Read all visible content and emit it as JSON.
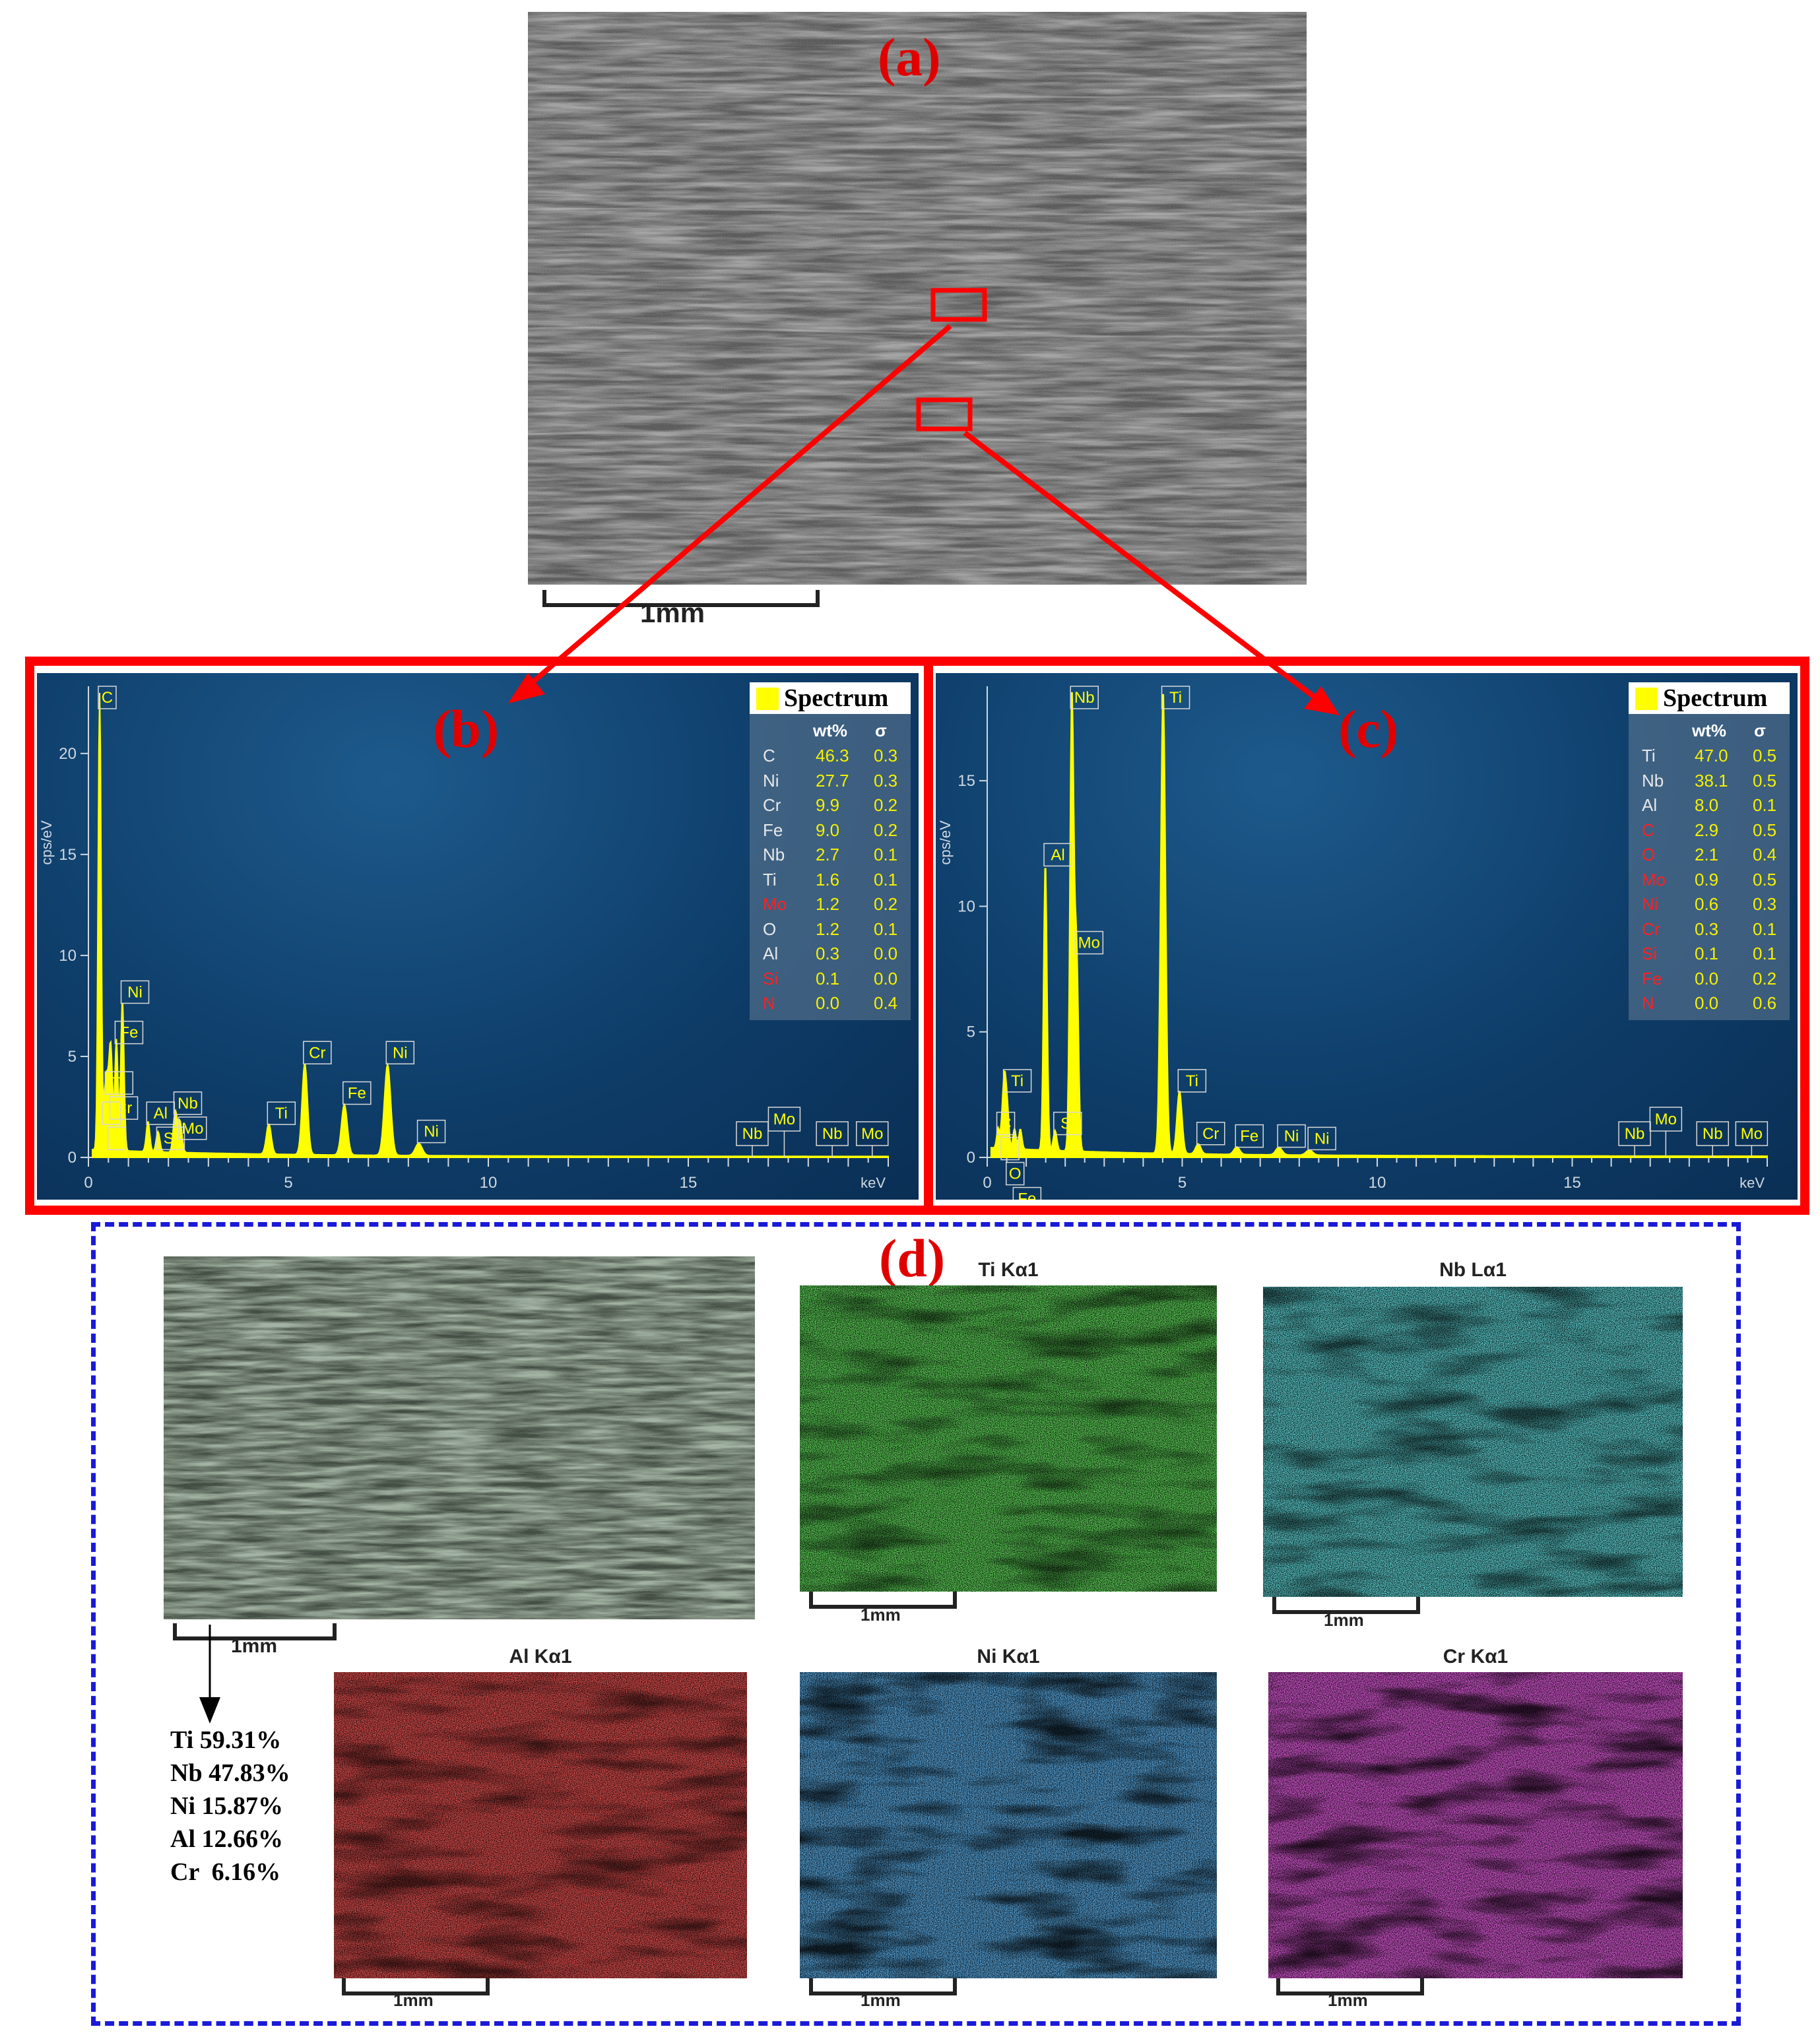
{
  "panels": {
    "a": {
      "label": "(a)",
      "scale": "1mm"
    },
    "b": {
      "label": "(b)",
      "legend_title": "Spectrum",
      "col_wt": "wt%",
      "col_sigma": "σ",
      "rows": [
        {
          "el": "C",
          "wt": "46.3",
          "s": "0.3",
          "color": "#e8e8e8"
        },
        {
          "el": "Ni",
          "wt": "27.7",
          "s": "0.3",
          "color": "#e8e8e8"
        },
        {
          "el": "Cr",
          "wt": "9.9",
          "s": "0.2",
          "color": "#e8e8e8"
        },
        {
          "el": "Fe",
          "wt": "9.0",
          "s": "0.2",
          "color": "#e8e8e8"
        },
        {
          "el": "Nb",
          "wt": "2.7",
          "s": "0.1",
          "color": "#e8e8e8"
        },
        {
          "el": "Ti",
          "wt": "1.6",
          "s": "0.1",
          "color": "#e8e8e8"
        },
        {
          "el": "Mo",
          "wt": "1.2",
          "s": "0.2",
          "color": "#ff2020"
        },
        {
          "el": "O",
          "wt": "1.2",
          "s": "0.1",
          "color": "#e8e8e8"
        },
        {
          "el": "Al",
          "wt": "0.3",
          "s": "0.0",
          "color": "#e8e8e8"
        },
        {
          "el": "Si",
          "wt": "0.1",
          "s": "0.0",
          "color": "#ff2020"
        },
        {
          "el": "N",
          "wt": "0.0",
          "s": "0.4",
          "color": "#ff2020"
        }
      ]
    },
    "c": {
      "label": "(c)",
      "legend_title": "Spectrum",
      "col_wt": "wt%",
      "col_sigma": "σ",
      "rows": [
        {
          "el": "Ti",
          "wt": "47.0",
          "s": "0.5",
          "color": "#e8e8e8"
        },
        {
          "el": "Nb",
          "wt": "38.1",
          "s": "0.5",
          "color": "#e8e8e8"
        },
        {
          "el": "Al",
          "wt": "8.0",
          "s": "0.1",
          "color": "#e8e8e8"
        },
        {
          "el": "C",
          "wt": "2.9",
          "s": "0.5",
          "color": "#ff2020"
        },
        {
          "el": "O",
          "wt": "2.1",
          "s": "0.4",
          "color": "#ff2020"
        },
        {
          "el": "Mo",
          "wt": "0.9",
          "s": "0.5",
          "color": "#ff2020"
        },
        {
          "el": "Ni",
          "wt": "0.6",
          "s": "0.3",
          "color": "#ff2020"
        },
        {
          "el": "Cr",
          "wt": "0.3",
          "s": "0.1",
          "color": "#ff2020"
        },
        {
          "el": "Si",
          "wt": "0.1",
          "s": "0.1",
          "color": "#ff2020"
        },
        {
          "el": "Fe",
          "wt": "0.0",
          "s": "0.2",
          "color": "#ff2020"
        },
        {
          "el": "N",
          "wt": "0.0",
          "s": "0.6",
          "color": "#ff2020"
        }
      ]
    },
    "d": {
      "label": "(d)",
      "scale": "1mm",
      "maps": [
        {
          "title": "Ti Kα1",
          "color": "#22c81e"
        },
        {
          "title": "Nb Lα1",
          "color": "#22c4c8"
        },
        {
          "title": "Al Kα1",
          "color": "#f01818"
        },
        {
          "title": "Ni Kα1",
          "color": "#1e78e6"
        },
        {
          "title": "Cr Kα1",
          "color": "#d81ed0"
        }
      ],
      "composition": [
        "Ti 59.31%",
        "Nb 47.83%",
        "Ni 15.87%",
        "Al 12.66%",
        "Cr  6.16%"
      ]
    }
  },
  "chart_data": [
    {
      "type": "line",
      "panel": "b",
      "xlabel": "keV",
      "ylabel": "cps/eV",
      "xlim": [
        0,
        20
      ],
      "ylim": [
        0,
        23
      ],
      "xticks": [
        0,
        5,
        10,
        15
      ],
      "yticks": [
        0,
        5,
        10,
        15,
        20
      ],
      "peaks": [
        {
          "x": 0.28,
          "y": 23,
          "label": "C"
        },
        {
          "x": 0.39,
          "y": 1.5,
          "label": "N"
        },
        {
          "x": 0.45,
          "y": 3.0,
          "label": "Ti"
        },
        {
          "x": 0.52,
          "y": 2.5,
          "label": "O"
        },
        {
          "x": 0.57,
          "y": 4.0,
          "label": "Cr"
        },
        {
          "x": 0.7,
          "y": 5.5,
          "label": "Fe"
        },
        {
          "x": 0.85,
          "y": 7.5,
          "label": "Ni"
        },
        {
          "x": 1.49,
          "y": 1.5,
          "label": "Al"
        },
        {
          "x": 1.74,
          "y": 1.0,
          "label": "Si"
        },
        {
          "x": 2.17,
          "y": 2.0,
          "label": "Nb"
        },
        {
          "x": 2.29,
          "y": 1.5,
          "label": "Mo"
        },
        {
          "x": 4.51,
          "y": 1.5,
          "label": "Ti"
        },
        {
          "x": 5.41,
          "y": 4.5,
          "label": "Cr"
        },
        {
          "x": 6.4,
          "y": 2.5,
          "label": "Fe"
        },
        {
          "x": 7.48,
          "y": 4.5,
          "label": "Ni"
        },
        {
          "x": 8.26,
          "y": 0.6,
          "label": "Ni"
        }
      ],
      "marker_labels": [
        {
          "x": 16.6,
          "label": "Nb"
        },
        {
          "x": 17.4,
          "label": "Mo"
        },
        {
          "x": 18.6,
          "label": "Nb"
        },
        {
          "x": 19.6,
          "label": "Mo"
        }
      ]
    },
    {
      "type": "line",
      "panel": "c",
      "xlabel": "keV",
      "ylabel": "cps/eV",
      "xlim": [
        0,
        20
      ],
      "ylim": [
        0,
        18.5
      ],
      "xticks": [
        0,
        5,
        10,
        15
      ],
      "yticks": [
        0,
        5,
        10,
        15
      ],
      "peaks": [
        {
          "x": 0.28,
          "y": 0.8,
          "label": "C"
        },
        {
          "x": 0.39,
          "y": 1.2,
          "label": "N"
        },
        {
          "x": 0.45,
          "y": 2.5,
          "label": "Ti"
        },
        {
          "x": 0.52,
          "y": 1.5,
          "label": "O"
        },
        {
          "x": 0.7,
          "y": 0.8,
          "label": "Fe"
        },
        {
          "x": 0.85,
          "y": 0.8,
          "label": "Ni"
        },
        {
          "x": 1.49,
          "y": 11.5,
          "label": "Al"
        },
        {
          "x": 1.74,
          "y": 0.8,
          "label": "Si"
        },
        {
          "x": 2.17,
          "y": 18.5,
          "label": "Nb"
        },
        {
          "x": 2.29,
          "y": 8.0,
          "label": "Mo"
        },
        {
          "x": 4.51,
          "y": 18.5,
          "label": "Ti"
        },
        {
          "x": 4.93,
          "y": 2.5,
          "label": "Ti"
        },
        {
          "x": 5.41,
          "y": 0.4,
          "label": "Cr"
        },
        {
          "x": 6.4,
          "y": 0.3,
          "label": "Fe"
        },
        {
          "x": 7.48,
          "y": 0.3,
          "label": "Ni"
        },
        {
          "x": 8.26,
          "y": 0.2,
          "label": "Ni"
        }
      ],
      "marker_labels": [
        {
          "x": 16.6,
          "label": "Nb"
        },
        {
          "x": 17.4,
          "label": "Mo"
        },
        {
          "x": 18.6,
          "label": "Nb"
        },
        {
          "x": 19.6,
          "label": "Mo"
        }
      ]
    }
  ]
}
